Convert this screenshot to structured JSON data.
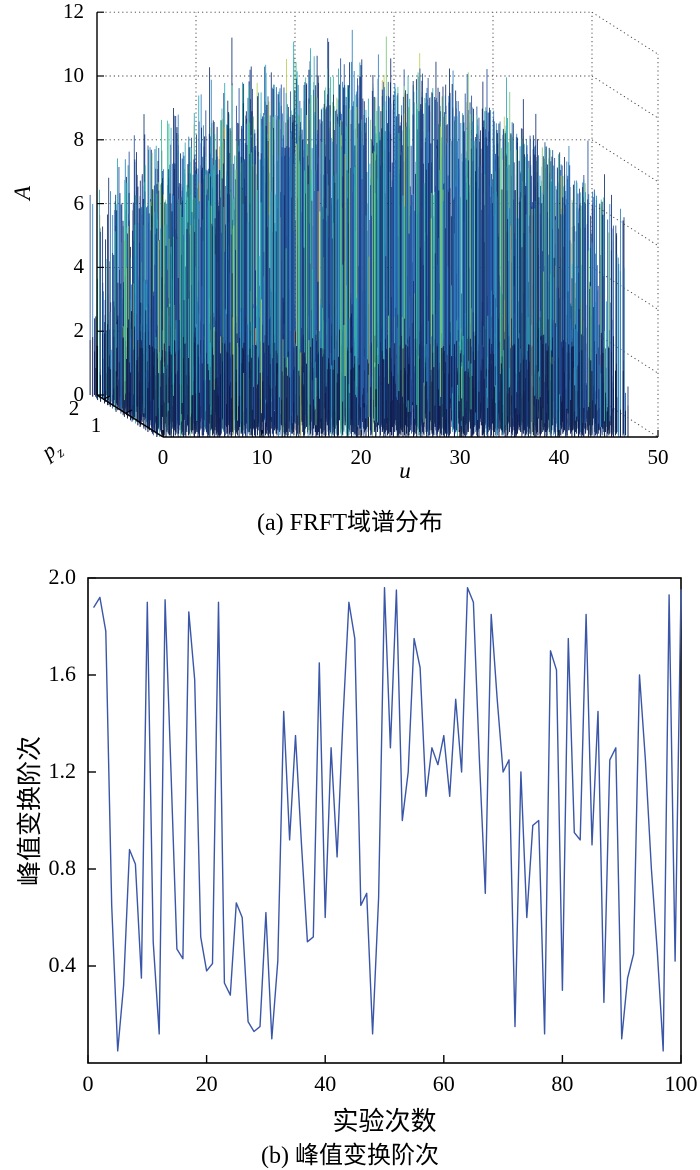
{
  "figure": {
    "background": "#ffffff"
  },
  "chart_data": [
    {
      "type": "3d-spike-spectrum",
      "caption": "(a) FRFT域谱分布",
      "xlabel": "u",
      "ylabel": "A",
      "zlabel_main": "p",
      "zlabel_sub": "z",
      "x_ticks": [
        0,
        10,
        20,
        30,
        40,
        50
      ],
      "y_ticks": [
        0,
        2,
        4,
        6,
        8,
        10,
        12
      ],
      "z_ticks": [
        2,
        1
      ],
      "xlim": [
        0,
        50
      ],
      "ylim": [
        0,
        12
      ],
      "zlim": [
        1,
        2
      ],
      "x_data_range": [
        0,
        47
      ],
      "amplitude_envelope": {
        "edge_max": 6.2,
        "center_max": 10.8,
        "peak": 11.5,
        "dense_base_max": 3.0
      },
      "palette": [
        "#16306e",
        "#274f9e",
        "#2f7fc1",
        "#2fa6b8",
        "#3bbf9a",
        "#79c879",
        "#b9d05a",
        "#e0a23a"
      ],
      "palette_weights": [
        0.3,
        0.22,
        0.17,
        0.12,
        0.09,
        0.06,
        0.032,
        0.008
      ],
      "base_color": "#101c4e",
      "grid": "dotted",
      "seed": 1337,
      "note": "dense random FRFT-domain amplitude spikes over u = 0..47, pz = 1..2, A mostly 0-11"
    },
    {
      "type": "line",
      "caption": "(b) 峰值变换阶次",
      "xlabel": "实验次数",
      "ylabel": "峰值变换阶次",
      "x_ticks": [
        0,
        20,
        40,
        60,
        80,
        100
      ],
      "y_ticks": [
        0.4,
        0.8,
        1.2,
        1.6,
        2.0
      ],
      "xlim": [
        0,
        100
      ],
      "ylim": [
        0,
        2
      ],
      "grid": "off",
      "legend": "none",
      "line_color": "#3a56a8",
      "x_start": 1,
      "values": [
        1.88,
        1.92,
        1.78,
        0.65,
        0.05,
        0.32,
        0.88,
        0.82,
        0.35,
        1.9,
        0.5,
        0.12,
        1.91,
        1.2,
        0.47,
        0.43,
        1.86,
        1.58,
        0.52,
        0.38,
        0.41,
        1.9,
        0.33,
        0.28,
        0.66,
        0.6,
        0.17,
        0.13,
        0.15,
        0.62,
        0.1,
        0.42,
        1.45,
        0.92,
        1.35,
        0.9,
        0.5,
        0.52,
        1.65,
        0.6,
        1.3,
        0.85,
        1.42,
        1.9,
        1.75,
        0.65,
        0.7,
        0.12,
        0.68,
        1.96,
        1.3,
        1.95,
        1.0,
        1.2,
        1.75,
        1.63,
        1.1,
        1.3,
        1.23,
        1.35,
        1.1,
        1.5,
        1.2,
        1.96,
        1.9,
        1.25,
        0.7,
        1.85,
        1.5,
        1.2,
        1.25,
        0.15,
        1.2,
        0.6,
        0.98,
        1.0,
        0.12,
        1.7,
        1.62,
        0.3,
        1.75,
        0.95,
        0.92,
        1.85,
        0.9,
        1.45,
        0.25,
        1.25,
        1.3,
        0.1,
        0.35,
        0.45,
        1.6,
        1.25,
        0.8,
        0.46,
        0.05,
        1.93,
        0.42,
        1.95
      ]
    }
  ]
}
